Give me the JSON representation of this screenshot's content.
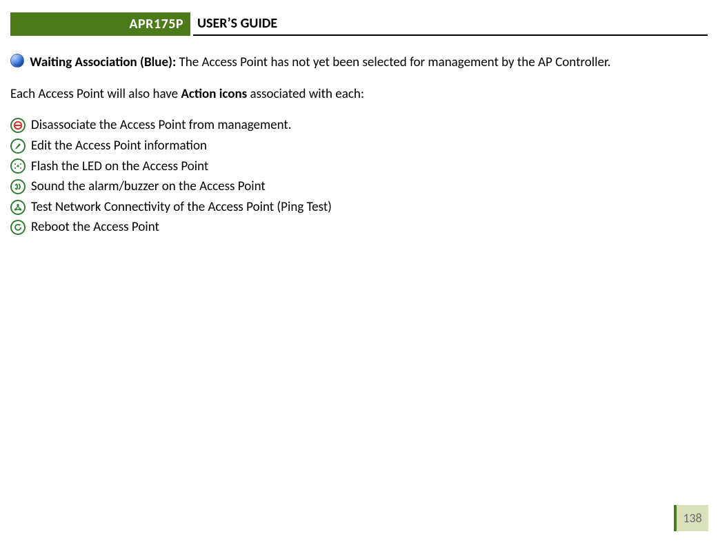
{
  "header": {
    "model": "APR175P",
    "title": "USER’S GUIDE",
    "brand_color": "#4e7b1a"
  },
  "status": {
    "dot_color": "#2f6fd4",
    "label": "Waiting Association (Blue):",
    "desc": "The Access Point has not yet been selected for management by the AP Controller."
  },
  "intro": {
    "pre": "Each Access Point will also have ",
    "bold": "Action icons",
    "post": " associated with each:"
  },
  "actions": {
    "icon_border": "#2e7d32",
    "items": [
      {
        "name": "disassociate-icon",
        "label": "Disassociate the Access Point from management.",
        "glyph": "no-entry",
        "glyph_color": "#d32f2f"
      },
      {
        "name": "edit-icon",
        "label": "Edit the Access Point information",
        "glyph": "pen",
        "glyph_color": "#2e7d32"
      },
      {
        "name": "flash-led-icon",
        "label": "Flash the LED on the Access Point",
        "glyph": "sparkle",
        "glyph_color": "#2e7d32"
      },
      {
        "name": "buzzer-icon",
        "label": "Sound the alarm/buzzer on the Access Point",
        "glyph": "sound",
        "glyph_color": "#2e7d32"
      },
      {
        "name": "ping-icon",
        "label": "Test Network Connectivity of the Access Point (Ping Test)",
        "glyph": "network",
        "glyph_color": "#2e7d32"
      },
      {
        "name": "reboot-icon",
        "label": "Reboot the Access Point",
        "glyph": "cycle",
        "glyph_color": "#2e7d32"
      }
    ]
  },
  "page_number": "138",
  "page_badge_bg": "#d8e1b9",
  "page_badge_text_color": "#6a6a6a"
}
